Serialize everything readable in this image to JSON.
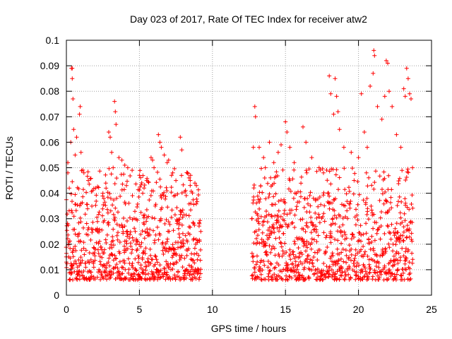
{
  "chart_data": {
    "type": "scatter",
    "title": "Day 023 of 2017, Rate Of TEC Index for receiver atw2",
    "xlabel": "GPS time / hours",
    "ylabel": "ROTI / TECUs",
    "xlim": [
      0,
      25
    ],
    "ylim": [
      0,
      0.1
    ],
    "xticks": [
      "0",
      "5",
      "10",
      "15",
      "20",
      "25"
    ],
    "yticks": [
      "0",
      "0.01",
      "0.02",
      "0.03",
      "0.04",
      "0.05",
      "0.06",
      "0.07",
      "0.08",
      "0.09",
      "0.1"
    ],
    "grid": true,
    "legend": "none",
    "marker": "plus",
    "color": "#ff0000",
    "x_sampling": [
      {
        "from": 0.0,
        "to": 9.2,
        "step": 0.04
      },
      {
        "from": 12.7,
        "to": 23.7,
        "step": 0.04
      }
    ],
    "series": [
      {
        "points": [
          [
            0.0,
            0.013
          ],
          [
            0.1,
            0.052
          ],
          [
            0.1,
            0.048
          ],
          [
            0.2,
            0.042
          ],
          [
            0.3,
            0.06
          ],
          [
            0.35,
            0.089
          ],
          [
            0.4,
            0.089
          ],
          [
            0.4,
            0.085
          ],
          [
            0.45,
            0.077
          ],
          [
            0.5,
            0.065
          ],
          [
            0.6,
            0.055
          ],
          [
            0.7,
            0.062
          ],
          [
            0.9,
            0.071
          ],
          [
            0.95,
            0.074
          ],
          [
            1.0,
            0.056
          ],
          [
            1.2,
            0.048
          ],
          [
            1.5,
            0.045
          ],
          [
            2.0,
            0.042
          ],
          [
            2.5,
            0.04
          ],
          [
            2.7,
            0.044
          ],
          [
            2.9,
            0.064
          ],
          [
            3.0,
            0.062
          ],
          [
            3.1,
            0.056
          ],
          [
            3.2,
            0.05
          ],
          [
            3.3,
            0.076
          ],
          [
            3.35,
            0.072
          ],
          [
            3.4,
            0.067
          ],
          [
            3.6,
            0.054
          ],
          [
            3.8,
            0.053
          ],
          [
            4.0,
            0.051
          ],
          [
            4.2,
            0.05
          ],
          [
            4.5,
            0.049
          ],
          [
            5.0,
            0.047
          ],
          [
            5.5,
            0.045
          ],
          [
            5.8,
            0.054
          ],
          [
            5.9,
            0.053
          ],
          [
            6.0,
            0.05
          ],
          [
            6.3,
            0.063
          ],
          [
            6.4,
            0.06
          ],
          [
            6.5,
            0.058
          ],
          [
            6.7,
            0.055
          ],
          [
            6.9,
            0.052
          ],
          [
            7.0,
            0.053
          ],
          [
            7.2,
            0.047
          ],
          [
            7.5,
            0.045
          ],
          [
            7.8,
            0.062
          ],
          [
            7.9,
            0.057
          ],
          [
            8.3,
            0.048
          ],
          [
            8.4,
            0.046
          ],
          [
            8.5,
            0.047
          ],
          [
            8.8,
            0.044
          ],
          [
            8.9,
            0.043
          ],
          [
            9.1,
            0.028
          ],
          [
            9.2,
            0.025
          ],
          [
            12.7,
            0.03
          ],
          [
            12.8,
            0.058
          ],
          [
            12.9,
            0.074
          ],
          [
            12.95,
            0.07
          ],
          [
            13.2,
            0.058
          ],
          [
            13.5,
            0.054
          ],
          [
            13.9,
            0.06
          ],
          [
            14.2,
            0.052
          ],
          [
            14.5,
            0.056
          ],
          [
            14.7,
            0.059
          ],
          [
            15.0,
            0.068
          ],
          [
            15.1,
            0.064
          ],
          [
            15.3,
            0.058
          ],
          [
            15.6,
            0.052
          ],
          [
            16.2,
            0.066
          ],
          [
            16.4,
            0.06
          ],
          [
            16.8,
            0.054
          ],
          [
            17.3,
            0.05
          ],
          [
            17.6,
            0.048
          ],
          [
            18.0,
            0.086
          ],
          [
            18.1,
            0.079
          ],
          [
            18.3,
            0.071
          ],
          [
            18.4,
            0.085
          ],
          [
            18.5,
            0.078
          ],
          [
            18.6,
            0.072
          ],
          [
            18.7,
            0.065
          ],
          [
            19.0,
            0.058
          ],
          [
            19.5,
            0.056
          ],
          [
            20.0,
            0.054
          ],
          [
            20.2,
            0.079
          ],
          [
            20.4,
            0.064
          ],
          [
            20.6,
            0.058
          ],
          [
            20.8,
            0.082
          ],
          [
            21.0,
            0.087
          ],
          [
            21.05,
            0.096
          ],
          [
            21.1,
            0.094
          ],
          [
            21.3,
            0.074
          ],
          [
            21.6,
            0.069
          ],
          [
            21.8,
            0.078
          ],
          [
            21.9,
            0.092
          ],
          [
            22.0,
            0.091
          ],
          [
            22.1,
            0.08
          ],
          [
            22.3,
            0.074
          ],
          [
            22.6,
            0.063
          ],
          [
            22.9,
            0.058
          ],
          [
            23.1,
            0.081
          ],
          [
            23.2,
            0.078
          ],
          [
            23.3,
            0.089
          ],
          [
            23.4,
            0.085
          ],
          [
            23.5,
            0.079
          ],
          [
            23.6,
            0.077
          ],
          [
            23.7,
            0.05
          ]
        ],
        "core_band": [
          0.006,
          0.035
        ]
      }
    ]
  }
}
